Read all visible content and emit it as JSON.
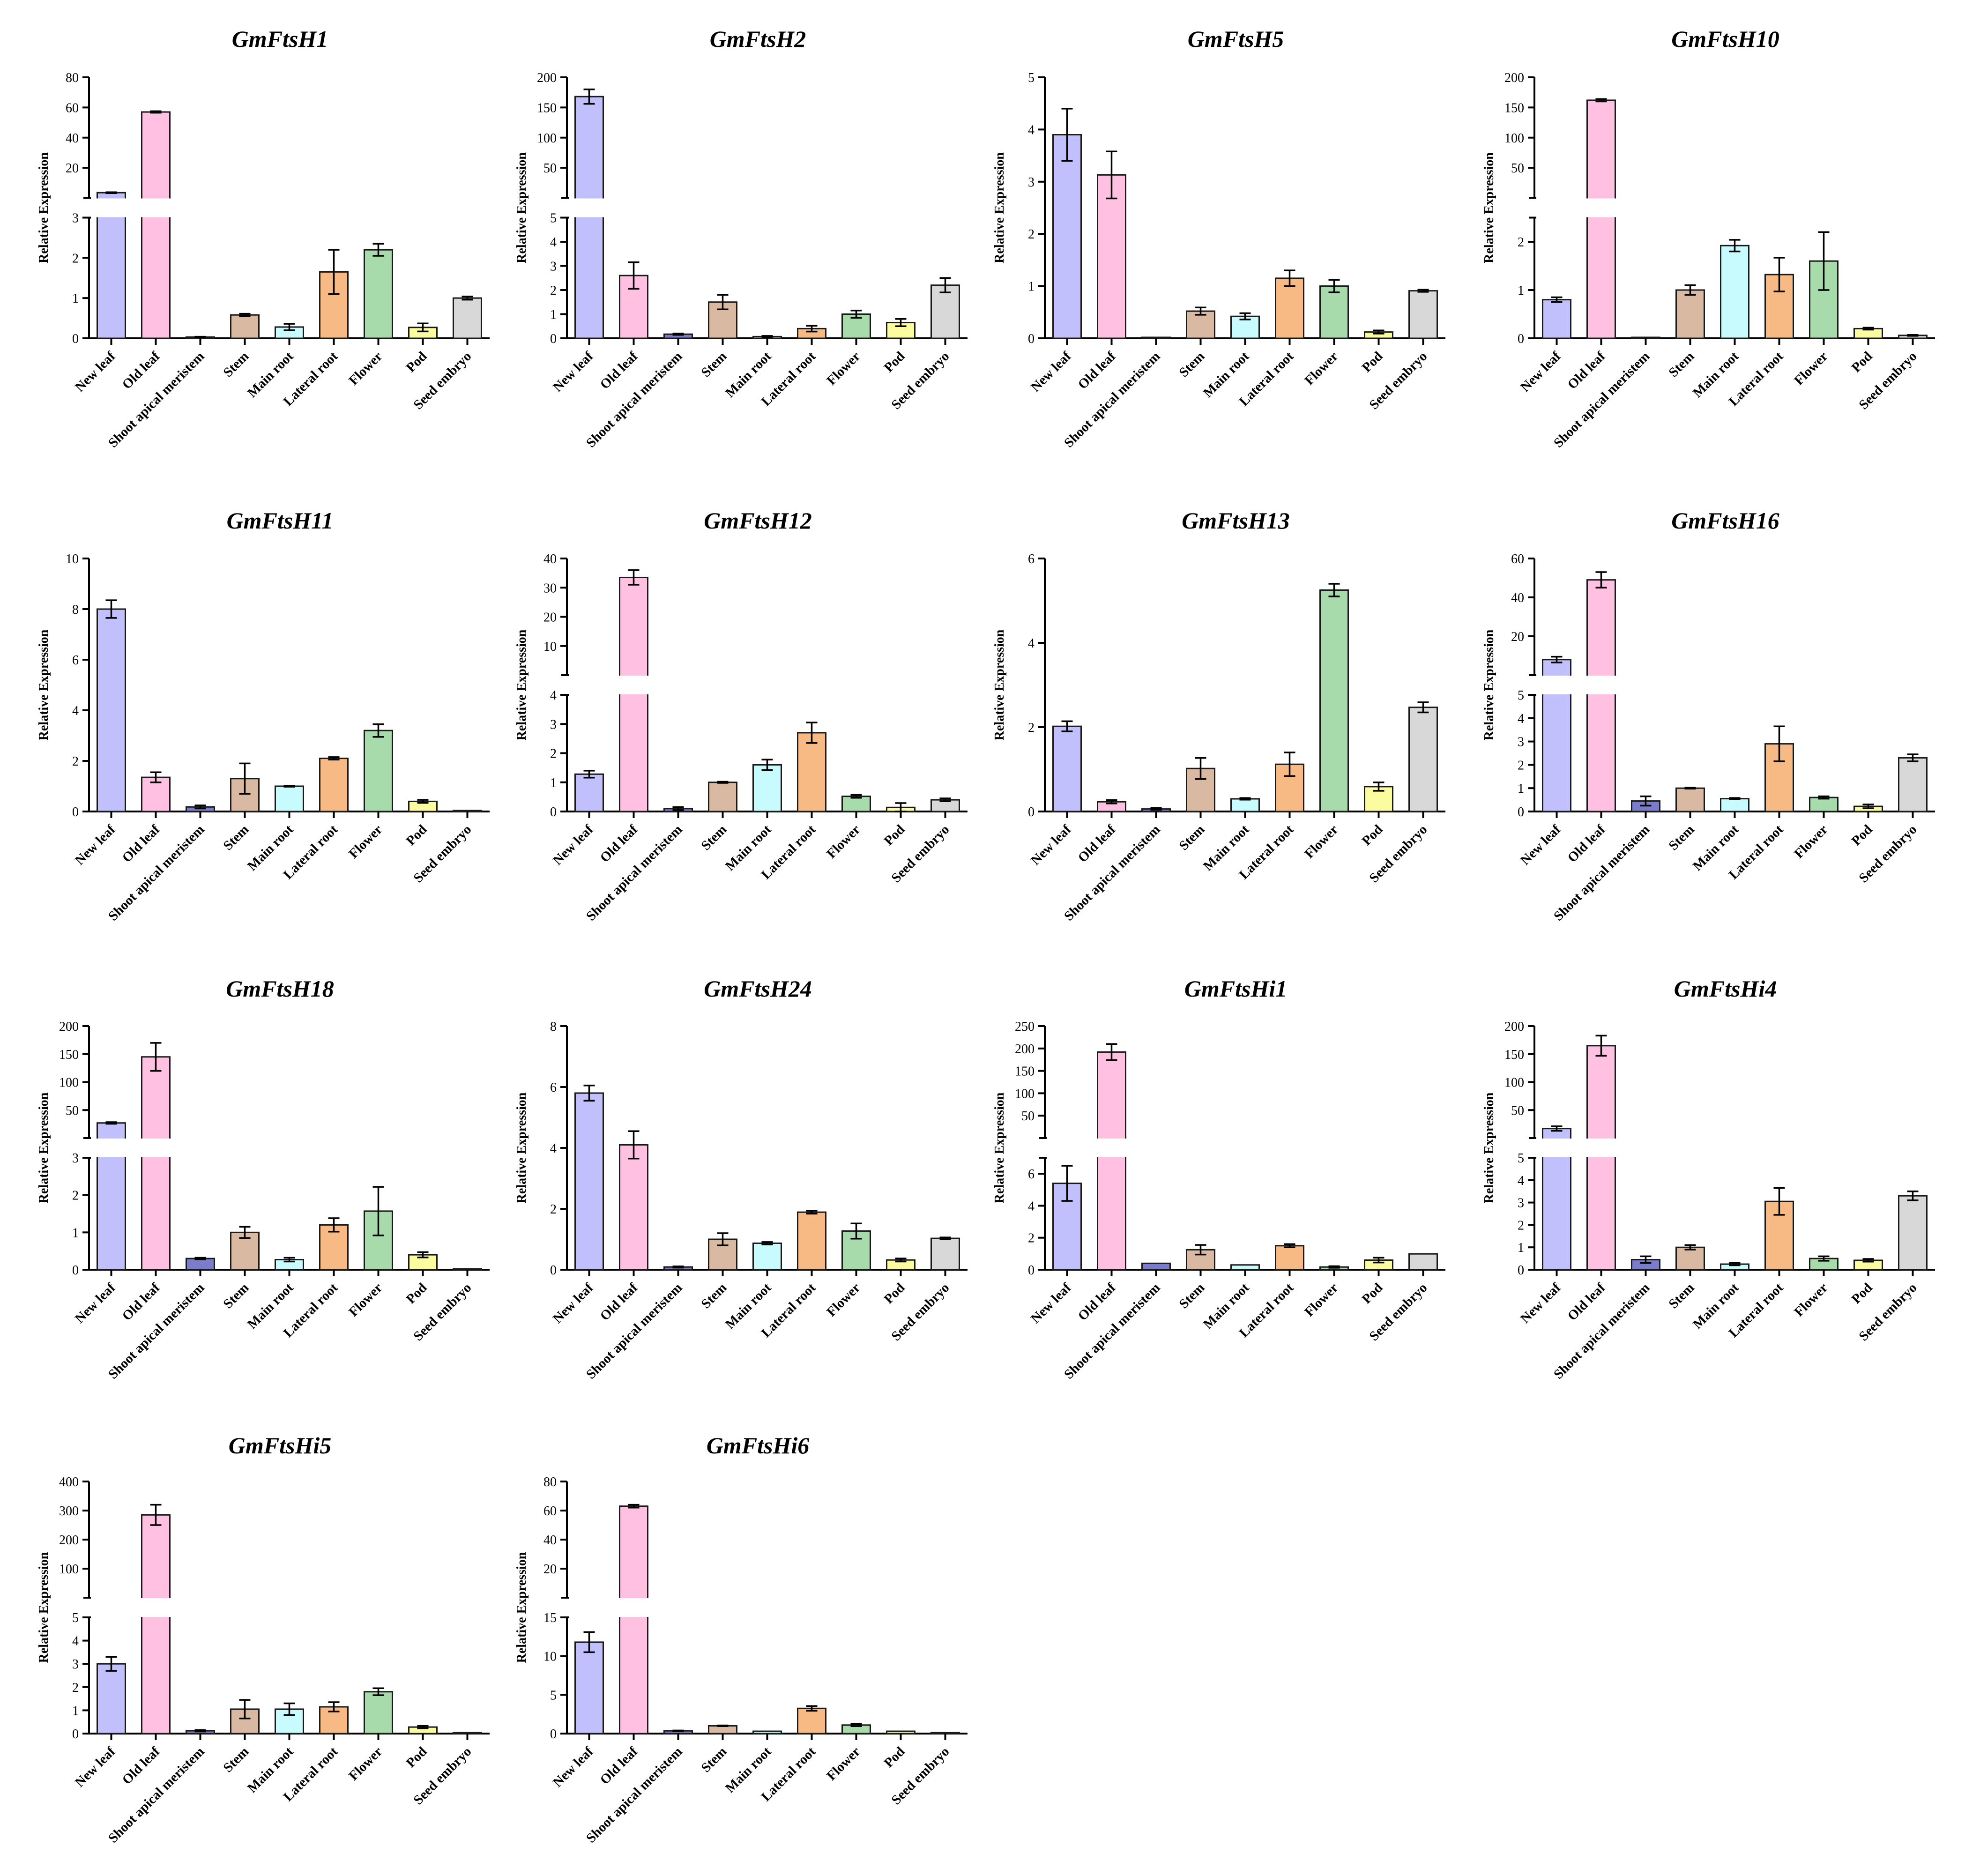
{
  "figure": {
    "y_axis_label": "Relative Expression",
    "categories": [
      "New leaf",
      "Old leaf",
      "Shoot apical meristem",
      "Stem",
      "Main root",
      "Lateral root",
      "Flower",
      "Pod",
      "Seed embryo"
    ],
    "colors": [
      "#c2c0fc",
      "#ffc0e2",
      "#7b7ccb",
      "#d9b9a2",
      "#c7fbfd",
      "#f7ba84",
      "#a8dbab",
      "#fbfb9f",
      "#d8d8d8"
    ]
  },
  "chart_data": [
    {
      "type": "bar",
      "title": "GmFtsH1",
      "ylabel": "Relative Expression",
      "categories": [
        "New leaf",
        "Old leaf",
        "Shoot apical meristem",
        "Stem",
        "Main root",
        "Lateral root",
        "Flower",
        "Pod",
        "Seed embryo"
      ],
      "values": [
        3.5,
        57,
        0.03,
        0.58,
        0.28,
        1.65,
        2.2,
        0.27,
        1.0
      ],
      "errors": [
        0.3,
        0.5,
        0.01,
        0.03,
        0.08,
        0.55,
        0.15,
        0.1,
        0.04
      ],
      "axis_break": {
        "lower": {
          "ylim": [
            0,
            3
          ],
          "ticks": [
            0,
            1,
            2,
            3
          ]
        },
        "upper": {
          "ylim": [
            0,
            80
          ],
          "ticks": [
            20,
            40,
            60,
            80
          ]
        }
      }
    },
    {
      "type": "bar",
      "title": "GmFtsH2",
      "ylabel": "Relative Expression",
      "categories": [
        "New leaf",
        "Old leaf",
        "Shoot apical meristem",
        "Stem",
        "Main root",
        "Lateral root",
        "Flower",
        "Pod",
        "Seed embryo"
      ],
      "values": [
        168,
        2.6,
        0.17,
        1.5,
        0.07,
        0.4,
        1.0,
        0.65,
        2.2
      ],
      "errors": [
        12,
        0.55,
        0.03,
        0.3,
        0.03,
        0.12,
        0.15,
        0.15,
        0.3
      ],
      "axis_break": {
        "lower": {
          "ylim": [
            0,
            5
          ],
          "ticks": [
            0,
            1,
            2,
            3,
            4,
            5
          ]
        },
        "upper": {
          "ylim": [
            0,
            200
          ],
          "ticks": [
            50,
            100,
            150,
            200
          ]
        }
      }
    },
    {
      "type": "bar",
      "title": "GmFtsH5",
      "ylabel": "Relative Expression",
      "categories": [
        "New leaf",
        "Old leaf",
        "Shoot apical meristem",
        "Stem",
        "Main root",
        "Lateral root",
        "Flower",
        "Pod",
        "Seed embryo"
      ],
      "values": [
        3.9,
        3.13,
        0.01,
        0.52,
        0.42,
        1.15,
        1.0,
        0.12,
        0.91
      ],
      "errors": [
        0.5,
        0.45,
        0.005,
        0.07,
        0.06,
        0.15,
        0.12,
        0.03,
        0.02
      ],
      "ylim": [
        0,
        5
      ],
      "ticks": [
        0,
        1,
        2,
        3,
        4,
        5
      ]
    },
    {
      "type": "bar",
      "title": "GmFtsH10",
      "ylabel": "Relative Expression",
      "categories": [
        "New leaf",
        "Old leaf",
        "Shoot apical meristem",
        "Stem",
        "Main root",
        "Lateral root",
        "Flower",
        "Pod",
        "Seed embryo"
      ],
      "values": [
        0.8,
        162,
        0.01,
        1.0,
        1.92,
        1.32,
        1.6,
        0.2,
        0.06
      ],
      "errors": [
        0.05,
        2,
        0.005,
        0.1,
        0.12,
        0.35,
        0.6,
        0.02,
        0.01
      ],
      "axis_break": {
        "lower": {
          "ylim": [
            0,
            2.5
          ],
          "ticks": [
            0,
            1,
            2
          ]
        },
        "upper": {
          "ylim": [
            0,
            200
          ],
          "ticks": [
            50,
            100,
            150,
            200
          ]
        }
      }
    },
    {
      "type": "bar",
      "title": "GmFtsH11",
      "ylabel": "Relative Expression",
      "categories": [
        "New leaf",
        "Old leaf",
        "Shoot apical meristem",
        "Stem",
        "Main root",
        "Lateral root",
        "Flower",
        "Pod",
        "Seed embryo"
      ],
      "values": [
        8.0,
        1.35,
        0.18,
        1.3,
        1.0,
        2.1,
        3.2,
        0.4,
        0.02
      ],
      "errors": [
        0.35,
        0.2,
        0.06,
        0.6,
        0.02,
        0.05,
        0.25,
        0.06,
        0.005
      ],
      "ylim": [
        0,
        10
      ],
      "ticks": [
        0,
        2,
        4,
        6,
        8,
        10
      ]
    },
    {
      "type": "bar",
      "title": "GmFtsH12",
      "ylabel": "Relative Expression",
      "categories": [
        "New leaf",
        "Old leaf",
        "Shoot apical meristem",
        "Stem",
        "Main root",
        "Lateral root",
        "Flower",
        "Pod",
        "Seed embryo"
      ],
      "values": [
        1.28,
        33.5,
        0.1,
        1.0,
        1.6,
        2.7,
        0.52,
        0.14,
        0.4
      ],
      "errors": [
        0.12,
        2.5,
        0.05,
        0.02,
        0.18,
        0.35,
        0.05,
        0.15,
        0.05
      ],
      "axis_break": {
        "lower": {
          "ylim": [
            0,
            4
          ],
          "ticks": [
            0,
            1,
            2,
            3,
            4
          ]
        },
        "upper": {
          "ylim": [
            0,
            40
          ],
          "ticks": [
            10,
            20,
            30,
            40
          ]
        }
      }
    },
    {
      "type": "bar",
      "title": "GmFtsH13",
      "ylabel": "Relative Expression",
      "categories": [
        "New leaf",
        "Old leaf",
        "Shoot apical meristem",
        "Stem",
        "Main root",
        "Lateral root",
        "Flower",
        "Pod",
        "Seed embryo"
      ],
      "values": [
        2.02,
        0.23,
        0.06,
        1.02,
        0.3,
        1.12,
        5.25,
        0.59,
        2.47
      ],
      "errors": [
        0.12,
        0.04,
        0.02,
        0.25,
        0.02,
        0.28,
        0.15,
        0.1,
        0.12
      ],
      "ylim": [
        0,
        6
      ],
      "ticks": [
        0,
        2,
        4,
        6
      ]
    },
    {
      "type": "bar",
      "title": "GmFtsH16",
      "ylabel": "Relative Expression",
      "categories": [
        "New leaf",
        "Old leaf",
        "Shoot apical meristem",
        "Stem",
        "Main root",
        "Lateral root",
        "Flower",
        "Pod",
        "Seed embryo"
      ],
      "values": [
        8,
        49,
        0.45,
        1.0,
        0.55,
        2.9,
        0.6,
        0.22,
        2.3
      ],
      "errors": [
        1.5,
        4,
        0.2,
        0.02,
        0.03,
        0.75,
        0.05,
        0.08,
        0.15
      ],
      "axis_break": {
        "lower": {
          "ylim": [
            0,
            5
          ],
          "ticks": [
            0,
            1,
            2,
            3,
            4,
            5
          ]
        },
        "upper": {
          "ylim": [
            0,
            60
          ],
          "ticks": [
            20,
            40,
            60
          ]
        }
      }
    },
    {
      "type": "bar",
      "title": "GmFtsH18",
      "ylabel": "Relative Expression",
      "categories": [
        "New leaf",
        "Old leaf",
        "Shoot apical meristem",
        "Stem",
        "Main root",
        "Lateral root",
        "Flower",
        "Pod",
        "Seed embryo"
      ],
      "values": [
        27,
        145,
        0.3,
        1.0,
        0.27,
        1.2,
        1.57,
        0.4,
        0.02
      ],
      "errors": [
        1.5,
        25,
        0.02,
        0.15,
        0.05,
        0.18,
        0.65,
        0.07,
        0.005
      ],
      "axis_break": {
        "lower": {
          "ylim": [
            0,
            3
          ],
          "ticks": [
            0,
            1,
            2,
            3
          ]
        },
        "upper": {
          "ylim": [
            0,
            200
          ],
          "ticks": [
            50,
            100,
            150,
            200
          ]
        }
      }
    },
    {
      "type": "bar",
      "title": "GmFtsH24",
      "ylabel": "Relative Expression",
      "categories": [
        "New leaf",
        "Old leaf",
        "Shoot apical meristem",
        "Stem",
        "Main root",
        "Lateral root",
        "Flower",
        "Pod",
        "Seed embryo"
      ],
      "values": [
        5.8,
        4.1,
        0.09,
        1.0,
        0.87,
        1.89,
        1.27,
        0.32,
        1.03
      ],
      "errors": [
        0.25,
        0.45,
        0.02,
        0.2,
        0.04,
        0.05,
        0.25,
        0.05,
        0.03
      ],
      "ylim": [
        0,
        8
      ],
      "ticks": [
        0,
        2,
        4,
        6,
        8
      ]
    },
    {
      "type": "bar",
      "title": "GmFtsHi1",
      "ylabel": "Relative Expression",
      "categories": [
        "New leaf",
        "Old leaf",
        "Shoot apical meristem",
        "Stem",
        "Main root",
        "Lateral root",
        "Flower",
        "Pod",
        "Seed embryo"
      ],
      "values": [
        5.4,
        192,
        0.4,
        1.25,
        0.3,
        1.5,
        0.17,
        0.6,
        0.99
      ],
      "errors": [
        1.1,
        18,
        0.02,
        0.3,
        0.02,
        0.1,
        0.05,
        0.15,
        0.02
      ],
      "axis_break": {
        "lower": {
          "ylim": [
            0,
            7
          ],
          "ticks": [
            0,
            2,
            4,
            6
          ]
        },
        "upper": {
          "ylim": [
            0,
            250
          ],
          "ticks": [
            50,
            100,
            150,
            200,
            250
          ]
        }
      }
    },
    {
      "type": "bar",
      "title": "GmFtsHi4",
      "ylabel": "Relative Expression",
      "categories": [
        "New leaf",
        "Old leaf",
        "Shoot apical meristem",
        "Stem",
        "Main root",
        "Lateral root",
        "Flower",
        "Pod",
        "Seed embryo"
      ],
      "values": [
        17,
        165,
        0.45,
        1.0,
        0.25,
        3.05,
        0.5,
        0.42,
        3.3
      ],
      "errors": [
        4,
        18,
        0.15,
        0.1,
        0.05,
        0.6,
        0.1,
        0.06,
        0.2
      ],
      "axis_break": {
        "lower": {
          "ylim": [
            0,
            5
          ],
          "ticks": [
            0,
            1,
            2,
            3,
            4,
            5
          ]
        },
        "upper": {
          "ylim": [
            0,
            200
          ],
          "ticks": [
            50,
            100,
            150,
            200
          ]
        }
      }
    },
    {
      "type": "bar",
      "title": "GmFtsHi5",
      "ylabel": "Relative Expression",
      "categories": [
        "New leaf",
        "Old leaf",
        "Shoot apical meristem",
        "Stem",
        "Main root",
        "Lateral root",
        "Flower",
        "Pod",
        "Seed embryo"
      ],
      "values": [
        3.0,
        285,
        0.12,
        1.05,
        1.05,
        1.15,
        1.8,
        0.28,
        0.02
      ],
      "errors": [
        0.3,
        35,
        0.03,
        0.4,
        0.25,
        0.2,
        0.15,
        0.05,
        0.005
      ],
      "axis_break": {
        "lower": {
          "ylim": [
            0,
            5
          ],
          "ticks": [
            0,
            1,
            2,
            3,
            4,
            5
          ]
        },
        "upper": {
          "ylim": [
            0,
            400
          ],
          "ticks": [
            100,
            200,
            300,
            400
          ]
        }
      }
    },
    {
      "type": "bar",
      "title": "GmFtsHi6",
      "ylabel": "Relative Expression",
      "categories": [
        "New leaf",
        "Old leaf",
        "Shoot apical meristem",
        "Stem",
        "Main root",
        "Lateral root",
        "Flower",
        "Pod",
        "Seed embryo"
      ],
      "values": [
        11.8,
        63,
        0.35,
        1.0,
        0.3,
        3.25,
        1.1,
        0.3,
        0.08
      ],
      "errors": [
        1.3,
        1,
        0.05,
        0.05,
        0.03,
        0.3,
        0.15,
        0.04,
        0.02
      ],
      "axis_break": {
        "lower": {
          "ylim": [
            0,
            15
          ],
          "ticks": [
            0,
            5,
            10,
            15
          ]
        },
        "upper": {
          "ylim": [
            0,
            80
          ],
          "ticks": [
            20,
            40,
            60,
            80
          ]
        }
      }
    }
  ]
}
